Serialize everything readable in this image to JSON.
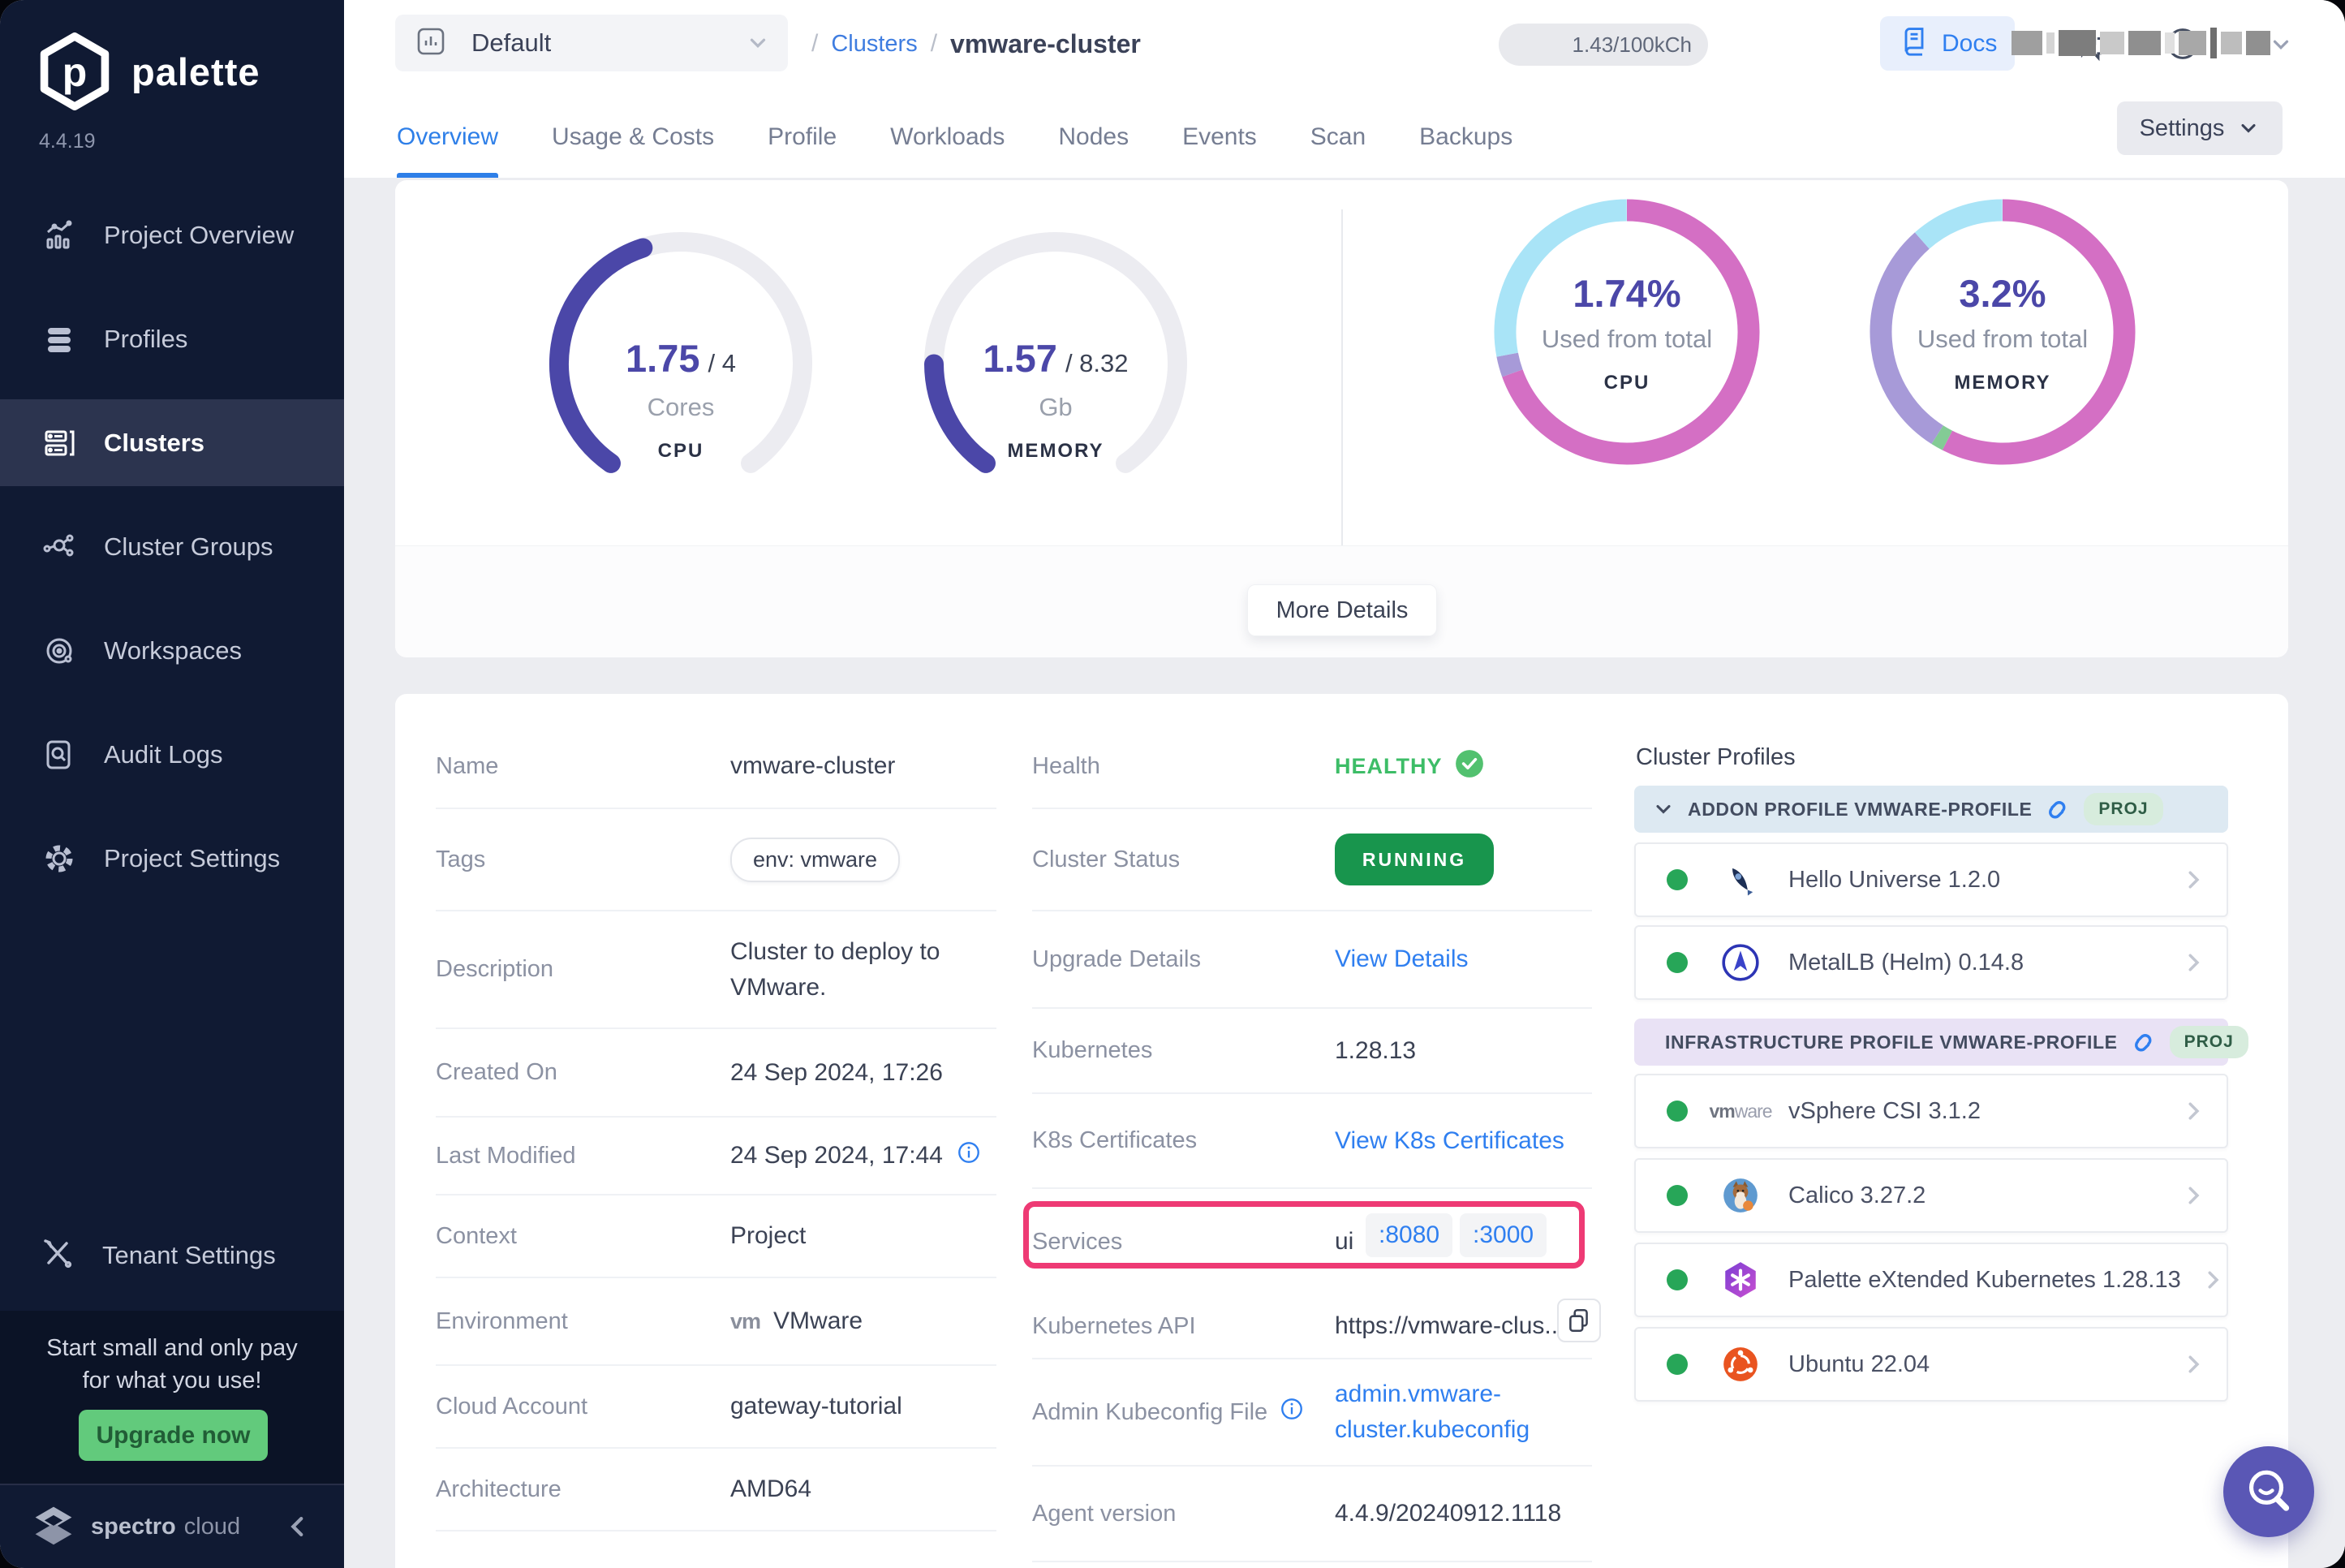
{
  "brand": {
    "name": "palette",
    "version": "4.4.19",
    "footer_bold": "spectro",
    "footer_light": "cloud"
  },
  "sidebar": {
    "items": [
      {
        "label": "Project Overview",
        "icon": "chart-overview-icon"
      },
      {
        "label": "Profiles",
        "icon": "profiles-stack-icon"
      },
      {
        "label": "Clusters",
        "icon": "clusters-rack-icon",
        "active": true
      },
      {
        "label": "Cluster Groups",
        "icon": "cluster-groups-icon"
      },
      {
        "label": "Workspaces",
        "icon": "workspaces-orbit-icon"
      },
      {
        "label": "Audit Logs",
        "icon": "audit-logs-icon"
      },
      {
        "label": "Project Settings",
        "icon": "gear-icon"
      }
    ],
    "tenant_settings": {
      "label": "Tenant Settings",
      "icon": "tools-icon"
    },
    "promo": {
      "line1": "Start small and only pay",
      "line2": "for what you use!",
      "cta": "Upgrade now"
    }
  },
  "topbar": {
    "project_selector": {
      "value": "Default",
      "icon": "bar-chart-icon"
    },
    "breadcrumb": {
      "separator": "/",
      "parent": "Clusters",
      "current": "vmware-cluster"
    },
    "usage_badge": "1.43/100kCh",
    "docs_label": "Docs"
  },
  "tabs": {
    "items": [
      "Overview",
      "Usage & Costs",
      "Profile",
      "Workloads",
      "Nodes",
      "Events",
      "Scan",
      "Backups"
    ],
    "active": "Overview",
    "settings_label": "Settings"
  },
  "overview": {
    "more_details_label": "More Details",
    "gauges": [
      {
        "value": "1.75",
        "total": "/ 4",
        "unit": "Cores",
        "label": "CPU",
        "percent": 43.75,
        "color": "#4b47a8",
        "track": "#ececf1"
      },
      {
        "value": "1.57",
        "total": "/ 8.32",
        "unit": "Gb",
        "label": "MEMORY",
        "percent": 18.9,
        "color": "#4b47a8",
        "track": "#ececf1"
      }
    ],
    "donuts": [
      {
        "value": "1.74%",
        "caption": "Used from total",
        "label": "CPU",
        "segments": [
          {
            "color": "#d46fc4",
            "pct": 69.5
          },
          {
            "color": "#a79ad8",
            "pct": 2.5
          },
          {
            "color": "#a9e4f7",
            "pct": 28
          }
        ]
      },
      {
        "value": "3.2%",
        "caption": "Used from total",
        "label": "MEMORY",
        "segments": [
          {
            "color": "#d46fc4",
            "pct": 57.5
          },
          {
            "color": "#83cb95",
            "pct": 1.5
          },
          {
            "color": "#a79ad8",
            "pct": 29.5
          },
          {
            "color": "#a9e4f7",
            "pct": 11.5
          }
        ]
      }
    ]
  },
  "details": {
    "name": {
      "label": "Name",
      "value": "vmware-cluster"
    },
    "tags": {
      "label": "Tags",
      "value": "env: vmware"
    },
    "description": {
      "label": "Description",
      "line1": "Cluster to deploy to",
      "line2": "VMware."
    },
    "created": {
      "label": "Created On",
      "value": "24 Sep 2024, 17:26"
    },
    "modified": {
      "label": "Last Modified",
      "value": "24 Sep 2024, 17:44"
    },
    "context": {
      "label": "Context",
      "value": "Project"
    },
    "environment": {
      "label": "Environment",
      "value": "VMware",
      "icon_text": "vm"
    },
    "cloud_account": {
      "label": "Cloud Account",
      "value": "gateway-tutorial"
    },
    "architecture": {
      "label": "Architecture",
      "value": "AMD64"
    },
    "health": {
      "label": "Health",
      "value": "HEALTHY"
    },
    "status": {
      "label": "Cluster Status",
      "value": "RUNNING"
    },
    "upgrade": {
      "label": "Upgrade Details",
      "value": "View Details"
    },
    "kubernetes": {
      "label": "Kubernetes",
      "value": "1.28.13"
    },
    "certs": {
      "label": "K8s Certificates",
      "value": "View K8s Certificates"
    },
    "services": {
      "label": "Services",
      "name": "ui",
      "ports": [
        ":8080",
        ":3000"
      ]
    },
    "api": {
      "label": "Kubernetes API",
      "value": "https://vmware-clus..."
    },
    "kubeconfig": {
      "label": "Admin Kubeconfig File",
      "line1": "admin.vmware-",
      "line2": "cluster.kubeconfig"
    },
    "agent": {
      "label": "Agent version",
      "value": "4.4.9/20240912.1118"
    }
  },
  "profiles": {
    "heading": "Cluster Profiles",
    "groups": [
      {
        "title": "ADDON PROFILE VMWARE-PROFILE",
        "badge": "PROJ",
        "header_color": "#dde9f2",
        "items": [
          {
            "name": "Hello Universe 1.2.0",
            "icon": "hello-universe-icon"
          },
          {
            "name": "MetalLB (Helm) 0.14.8",
            "icon": "metallb-icon"
          }
        ]
      },
      {
        "title": "INFRASTRUCTURE PROFILE VMWARE-PROFILE",
        "badge": "PROJ",
        "header_color": "#e9e2f5",
        "items": [
          {
            "name": "vSphere CSI 3.1.2",
            "icon": "vmware-wordmark-icon"
          },
          {
            "name": "Calico 3.27.2",
            "icon": "calico-cat-icon"
          },
          {
            "name": "Palette eXtended Kubernetes 1.28.13",
            "icon": "palette-pxk-icon"
          },
          {
            "name": "Ubuntu 22.04",
            "icon": "ubuntu-icon"
          }
        ]
      }
    ]
  },
  "icons": [
    "palette-logo-icon",
    "bar-chart-icon",
    "chat-icon",
    "compass-icon",
    "docs-book-icon",
    "chevron-down-icon",
    "chevron-right-icon",
    "chevron-left-icon",
    "info-icon",
    "check-circle-icon",
    "copy-icon",
    "link-chain-icon",
    "search-smile-icon",
    "spectro-cloud-logo-icon"
  ],
  "colors": {
    "accent_blue": "#2f7ff0",
    "purple": "#4b47a8",
    "donut_pink": "#d46fc4",
    "green_badge": "#18954d",
    "highlight_pink": "#ee3a74",
    "sidebar_bg": "#101a33",
    "upgrade_green": "#62ca7c"
  }
}
